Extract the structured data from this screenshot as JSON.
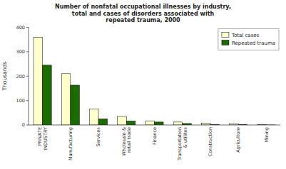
{
  "chart_data": {
    "type": "bar",
    "title": "Number of nonfatal occupational illnesses by industry,\ntotal and cases of disorders associated with\nrepeated trauma, 2000",
    "categories": [
      "PRIVATE\nINDUSTRY",
      "Manufacturing",
      "Services",
      "Wholesale &\nretail trade",
      "Finance",
      "Transportation\n& utilites",
      "Construction",
      "Agriculture",
      "Mining"
    ],
    "series": [
      {
        "name": "Total cases",
        "color": "#FFFFCC",
        "values": [
          360,
          210,
          65,
          35,
          17,
          12,
          8,
          4,
          1
        ]
      },
      {
        "name": "Repeated trauma",
        "color": "#1a6b00",
        "values": [
          245,
          163,
          25,
          16,
          12,
          6,
          2,
          2,
          0.3
        ]
      }
    ],
    "ylabel": "Thousands",
    "ylim": [
      0,
      400
    ],
    "yticks": [
      0,
      100,
      200,
      300,
      400
    ],
    "grid": false,
    "legend": "upper right"
  }
}
